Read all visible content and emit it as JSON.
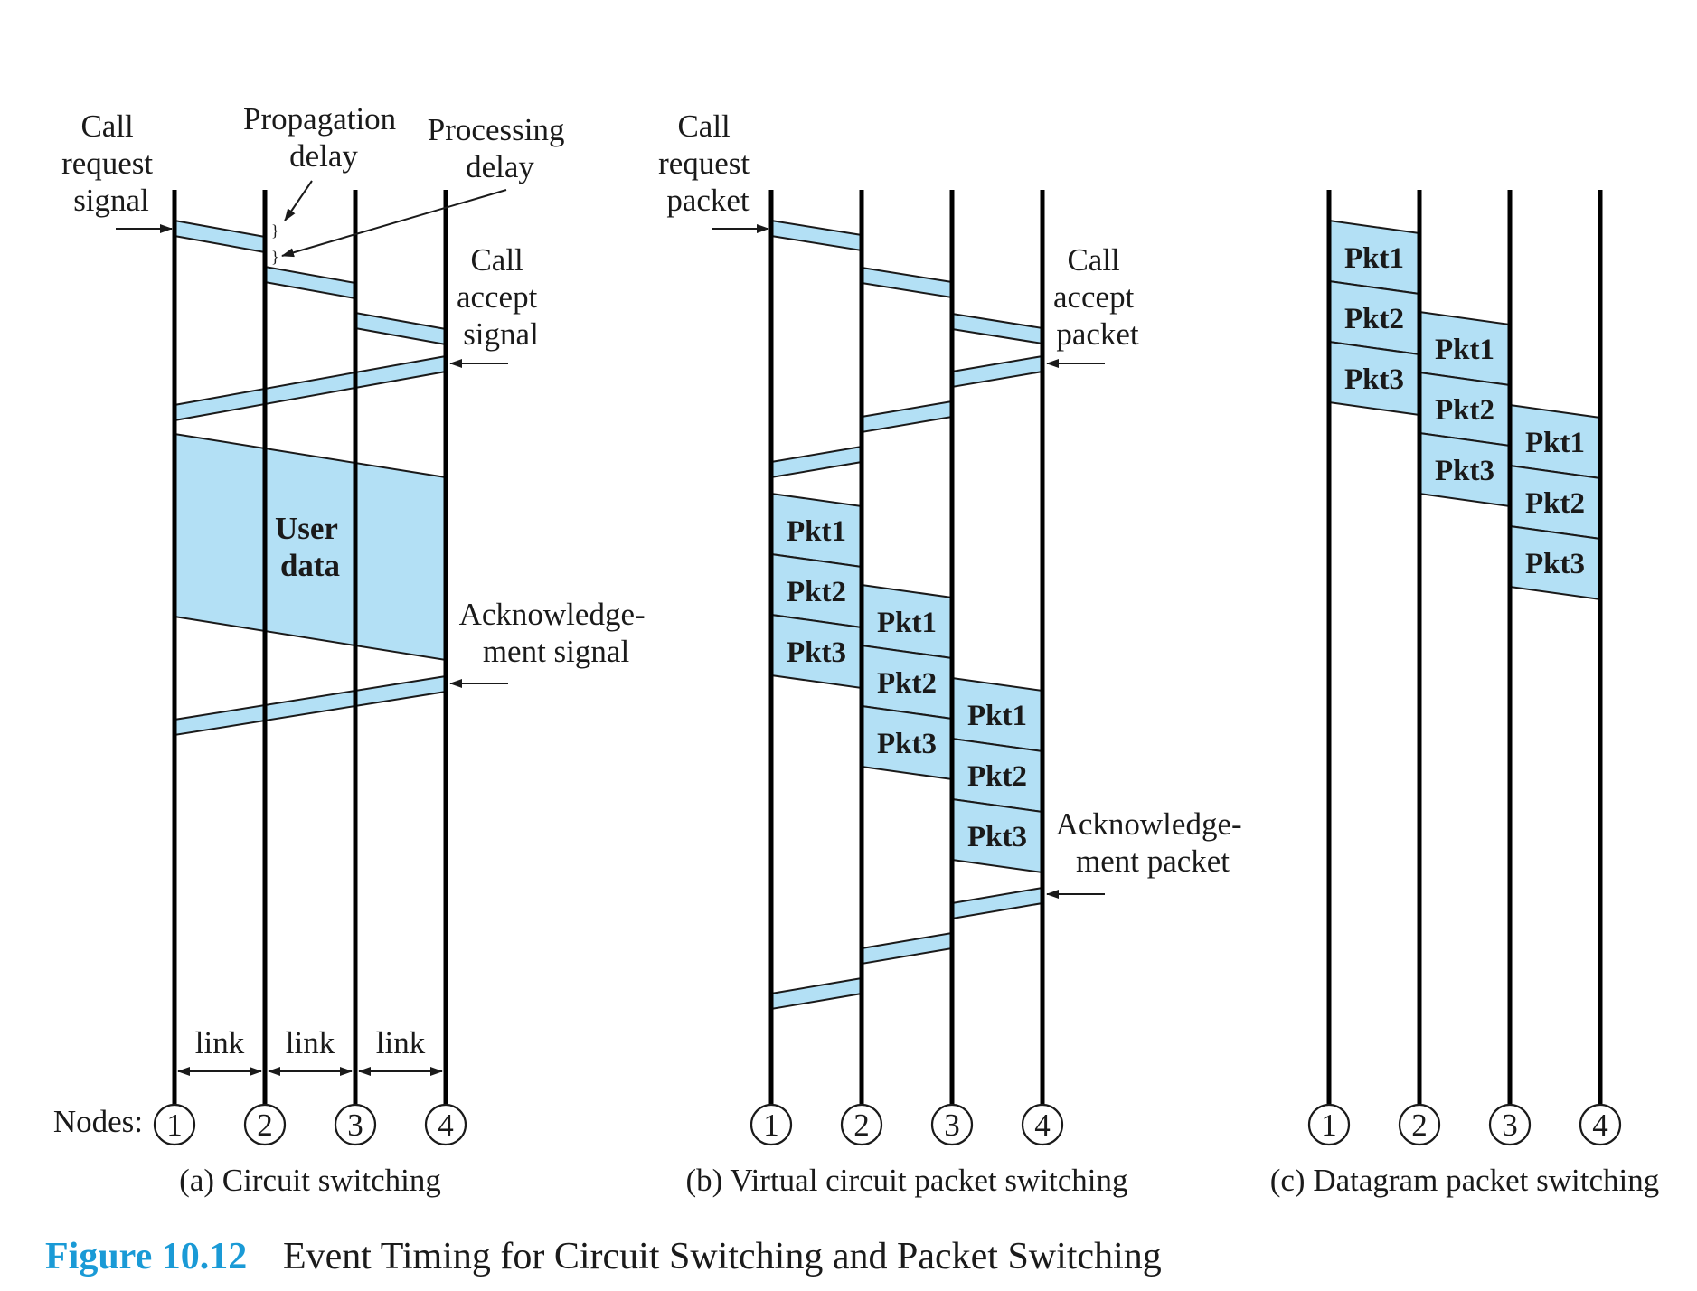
{
  "labels": {
    "call_request_signal": [
      "Call",
      "request",
      "signal"
    ],
    "propagation_delay": [
      "Propagation",
      "delay"
    ],
    "processing_delay": [
      "Processing",
      "delay"
    ],
    "call_accept_signal": [
      "Call",
      "accept",
      "signal"
    ],
    "user_data": [
      "User",
      "data"
    ],
    "ack_signal": [
      "Acknowledge-",
      "ment signal"
    ],
    "link": "link",
    "nodes_label": "Nodes:",
    "call_request_packet": [
      "Call",
      "request",
      "packet"
    ],
    "call_accept_packet": [
      "Call",
      "accept",
      "packet"
    ],
    "ack_packet": [
      "Acknowledge-",
      "ment packet"
    ],
    "brace": "}"
  },
  "node_numbers": [
    "1",
    "2",
    "3",
    "4"
  ],
  "packets": [
    "Pkt1",
    "Pkt2",
    "Pkt3"
  ],
  "panels": {
    "a": "(a) Circuit switching",
    "b": "(b) Virtual circuit packet switching",
    "c": "(c) Datagram packet switching"
  },
  "caption": {
    "number": "Figure 10.12",
    "text": "Event Timing for Circuit Switching and Packet Switching"
  },
  "colors": {
    "fill": "#b3e0f5",
    "caption_accent": "#1a9ad6",
    "line": "#000000"
  }
}
